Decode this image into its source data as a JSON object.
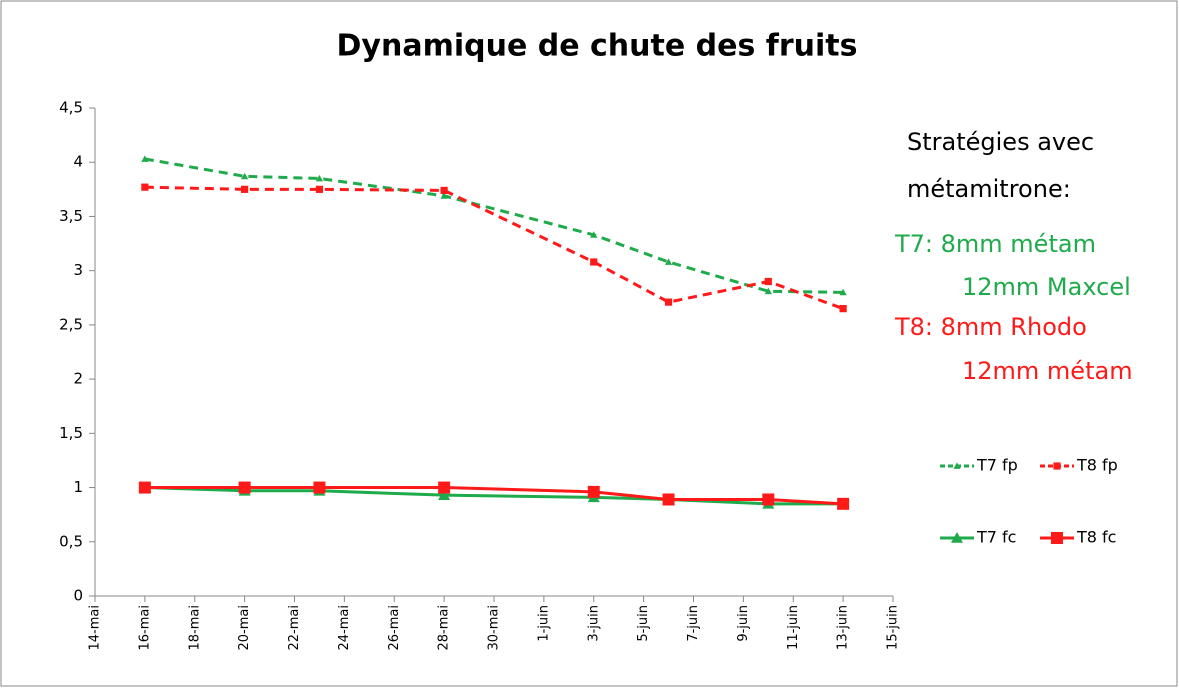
{
  "chart_data": {
    "type": "line",
    "title": "Dynamique de chute des fruits",
    "x": [
      "16-mai",
      "20-mai",
      "23-mai",
      "28-mai",
      "3-juin",
      "6-juin",
      "10-juin",
      "13-juin"
    ],
    "xlim": [
      "14-mai",
      "15-juin"
    ],
    "xticks": [
      "14-mai",
      "16-mai",
      "18-mai",
      "20-mai",
      "22-mai",
      "24-mai",
      "26-mai",
      "28-mai",
      "30-mai",
      "1-juin",
      "3-juin",
      "5-juin",
      "7-juin",
      "9-juin",
      "11-juin",
      "13-juin",
      "15-juin"
    ],
    "ylim": [
      0,
      4.5
    ],
    "yticks": [
      0,
      {
        "value": 0.5,
        "label": "0,5"
      },
      1,
      {
        "value": 1.5,
        "label": "1,5"
      },
      2,
      {
        "value": 2.5,
        "label": "2,5"
      },
      3,
      {
        "value": 3.5,
        "label": "3,5"
      },
      4,
      {
        "value": 4.5,
        "label": "4,5"
      }
    ],
    "grid": false,
    "series": [
      {
        "name": "T7 fp",
        "color": "#1faa4b",
        "dashed": true,
        "marker": "triangle",
        "values": [
          4.03,
          3.87,
          3.85,
          3.69,
          3.33,
          3.08,
          2.81,
          2.8
        ]
      },
      {
        "name": "T8 fp",
        "color": "#ff1a1a",
        "dashed": true,
        "marker": "square",
        "values": [
          3.77,
          3.75,
          3.75,
          3.74,
          3.08,
          2.71,
          2.9,
          2.65
        ]
      },
      {
        "name": "T7 fc",
        "color": "#1faa4b",
        "dashed": false,
        "marker": "triangle",
        "values": [
          1.0,
          0.97,
          0.97,
          0.93,
          0.91,
          0.89,
          0.85,
          0.85
        ]
      },
      {
        "name": "T8 fc",
        "color": "#ff1a1a",
        "dashed": false,
        "marker": "square",
        "values": [
          1.0,
          1.0,
          1.0,
          1.0,
          0.96,
          0.89,
          0.89,
          0.85
        ]
      }
    ],
    "annotations": [
      {
        "text": "Stratégies avec",
        "color": "#000000"
      },
      {
        "text": "métamitrone:",
        "color": "#000000"
      },
      {
        "text": "T7: 8mm métam",
        "color": "#1faa4b"
      },
      {
        "text": "12mm Maxcel",
        "color": "#1faa4b"
      },
      {
        "text": "T8: 8mm Rhodo",
        "color": "#ff1a1a"
      },
      {
        "text": "12mm métam",
        "color": "#ff1a1a"
      }
    ]
  }
}
